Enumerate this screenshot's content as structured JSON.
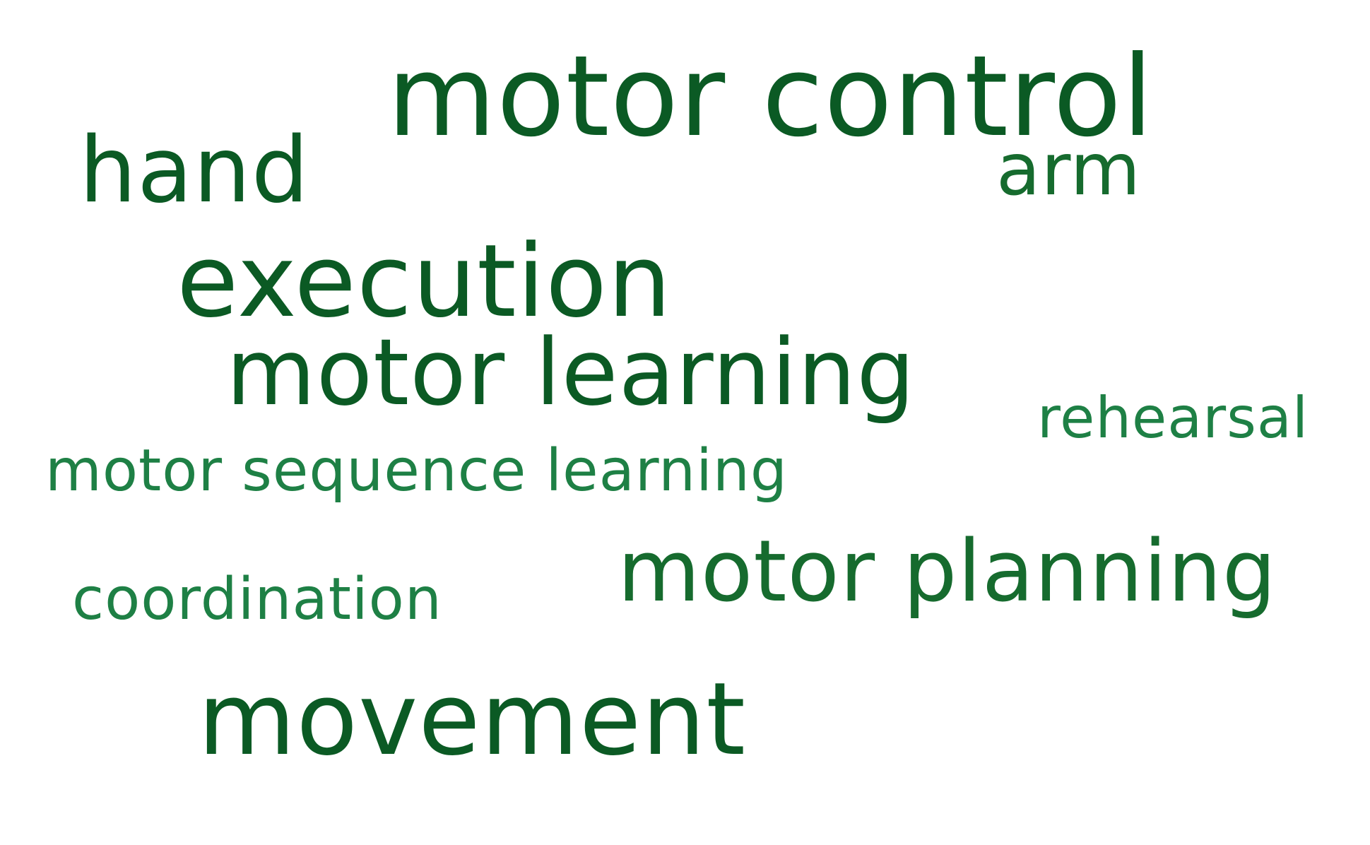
{
  "cloud": {
    "words": {
      "motor_control": "motor control",
      "hand": "hand",
      "arm": "arm",
      "execution": "execution",
      "motor_learning": "motor learning",
      "rehearsal": "rehearsal",
      "motor_sequence_learning": "motor sequence learning",
      "motor_planning": "motor planning",
      "coordination": "coordination",
      "movement": "movement"
    },
    "colors": {
      "dark": "#0b5a24",
      "mid": "#166b2e",
      "light": "#1e8045",
      "background": "#ffffff"
    }
  }
}
